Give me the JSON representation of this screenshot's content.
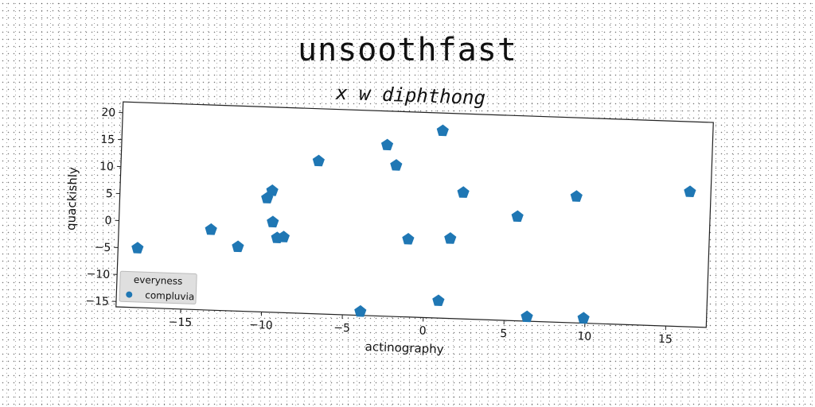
{
  "title": "unsoothfast",
  "chart_data": {
    "type": "scatter",
    "title": "x w diphthong",
    "xlabel": "actinography",
    "ylabel": "quackishly",
    "xlim": [
      -19,
      17.5
    ],
    "ylim": [
      -16,
      22
    ],
    "xticks": [
      -15,
      -10,
      -5,
      0,
      5,
      10,
      15
    ],
    "yticks": [
      -15,
      -10,
      -5,
      0,
      5,
      10,
      15,
      20
    ],
    "grid": false,
    "legend": {
      "title": "everyness",
      "placement": "lower-left"
    },
    "series": [
      {
        "name": "compluvia",
        "color": "#1f77b4",
        "marker": "pentagon",
        "points": [
          [
            -17.8,
            -5.0
          ],
          [
            -13.3,
            -1.1
          ],
          [
            -11.6,
            -4.1
          ],
          [
            -9.9,
            5.1
          ],
          [
            -9.6,
            6.5
          ],
          [
            -9.5,
            0.7
          ],
          [
            -9.2,
            -2.2
          ],
          [
            -8.8,
            -2.0
          ],
          [
            -6.8,
            12.3
          ],
          [
            -3.9,
            -15.3
          ],
          [
            -2.6,
            15.7
          ],
          [
            -2.0,
            12.0
          ],
          [
            -1.1,
            -1.6
          ],
          [
            0.8,
            18.7
          ],
          [
            0.9,
            -12.8
          ],
          [
            1.5,
            -1.2
          ],
          [
            2.2,
            7.4
          ],
          [
            5.6,
            3.3
          ],
          [
            6.4,
            -15.2
          ],
          [
            9.2,
            7.4
          ],
          [
            9.9,
            -15.1
          ],
          [
            16.2,
            9.0
          ]
        ]
      }
    ]
  }
}
